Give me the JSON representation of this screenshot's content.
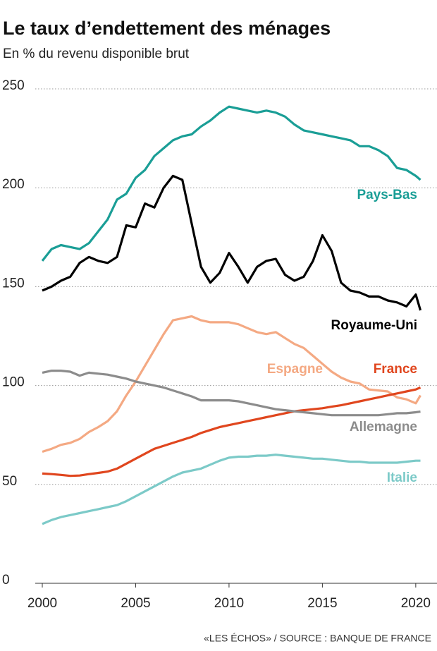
{
  "chart_data": {
    "type": "line",
    "title": "Le taux d’endettement des ménages",
    "subtitle": "En % du revenu disponible brut",
    "source": "«LES ÉCHOS» / SOURCE : BANQUE DE FRANCE",
    "x": [
      2000,
      2000.5,
      2001,
      2001.5,
      2002,
      2002.5,
      2003,
      2003.5,
      2004,
      2004.5,
      2005,
      2005.5,
      2006,
      2006.5,
      2007,
      2007.5,
      2008,
      2008.5,
      2009,
      2009.5,
      2010,
      2010.5,
      2011,
      2011.5,
      2012,
      2012.5,
      2013,
      2013.5,
      2014,
      2014.5,
      2015,
      2015.5,
      2016,
      2016.5,
      2017,
      2017.5,
      2018,
      2018.5,
      2019,
      2019.5,
      2020,
      2020.25
    ],
    "series": [
      {
        "name": "Pays-Bas",
        "color": "#1a9e96",
        "values": [
          163,
          169,
          171,
          170,
          169,
          172,
          178,
          184,
          194,
          197,
          205,
          209,
          216,
          220,
          224,
          226,
          227,
          231,
          234,
          238,
          241,
          240,
          239,
          238,
          239,
          238,
          236,
          232,
          229,
          228,
          227,
          226,
          225,
          224,
          221,
          221,
          219,
          216,
          210,
          209,
          206,
          204
        ]
      },
      {
        "name": "Royaume-Uni",
        "color": "#000000",
        "values": [
          148,
          150,
          153,
          155,
          162,
          165,
          163,
          162,
          165,
          181,
          180,
          192,
          190,
          200,
          206,
          204,
          182,
          160,
          152,
          157,
          167,
          160,
          152,
          160,
          163,
          164,
          156,
          153,
          155,
          163,
          176,
          168,
          152,
          148,
          147,
          145,
          145,
          143,
          142,
          140,
          146,
          138
        ]
      },
      {
        "name": "Espagne",
        "color": "#f4a983",
        "values": [
          66.5,
          68,
          70,
          71,
          73,
          76.5,
          79,
          82,
          87,
          95,
          102,
          110,
          118,
          126,
          133,
          134,
          135,
          133,
          132,
          132,
          132,
          131,
          129,
          127,
          126,
          127,
          124,
          121,
          119,
          115,
          111,
          107,
          104,
          102,
          101,
          98,
          97.5,
          97,
          94,
          93,
          91,
          95
        ]
      },
      {
        "name": "France",
        "color": "#e0461e",
        "values": [
          55.5,
          55.2,
          54.8,
          54.3,
          54.5,
          55.2,
          55.8,
          56.5,
          58,
          60.5,
          63,
          65.5,
          68,
          69.5,
          71,
          72.5,
          74,
          76,
          77.5,
          79,
          80,
          81,
          82,
          83,
          84,
          85,
          86,
          87,
          87.5,
          88,
          88.5,
          89.3,
          90,
          91,
          92,
          93,
          94,
          95,
          96,
          97,
          98,
          99
        ]
      },
      {
        "name": "Allemagne",
        "color": "#8c8c8c",
        "values": [
          106.5,
          107.5,
          107.5,
          107,
          105,
          106.5,
          106,
          105.5,
          104.5,
          103.5,
          102,
          101,
          100,
          99,
          97.5,
          96,
          94.5,
          92.5,
          92.5,
          92.5,
          92.5,
          92,
          91,
          90,
          89,
          88,
          87.5,
          87,
          86.5,
          86,
          85.5,
          85,
          85,
          85,
          85,
          85,
          85,
          85.5,
          86,
          86,
          86.5,
          86.8
        ]
      },
      {
        "name": "Italie",
        "color": "#7ccac8",
        "values": [
          30,
          32,
          33.5,
          34.5,
          35.5,
          36.5,
          37.5,
          38.5,
          39.5,
          41.5,
          44,
          46.5,
          49,
          51.5,
          54,
          56,
          57,
          58,
          60,
          62,
          63.5,
          64,
          64,
          64.5,
          64.5,
          65,
          64.5,
          64,
          63.5,
          63,
          63,
          62.5,
          62,
          61.5,
          61.5,
          61,
          61,
          61,
          61,
          61.5,
          62,
          62
        ]
      }
    ],
    "xlim": [
      1999.6,
      2021.1
    ],
    "xticks": [
      2000,
      2005,
      2010,
      2015,
      2020
    ],
    "ylim": [
      0,
      250
    ],
    "yticks": [
      0,
      50,
      100,
      150,
      200,
      250
    ],
    "grid": true
  }
}
